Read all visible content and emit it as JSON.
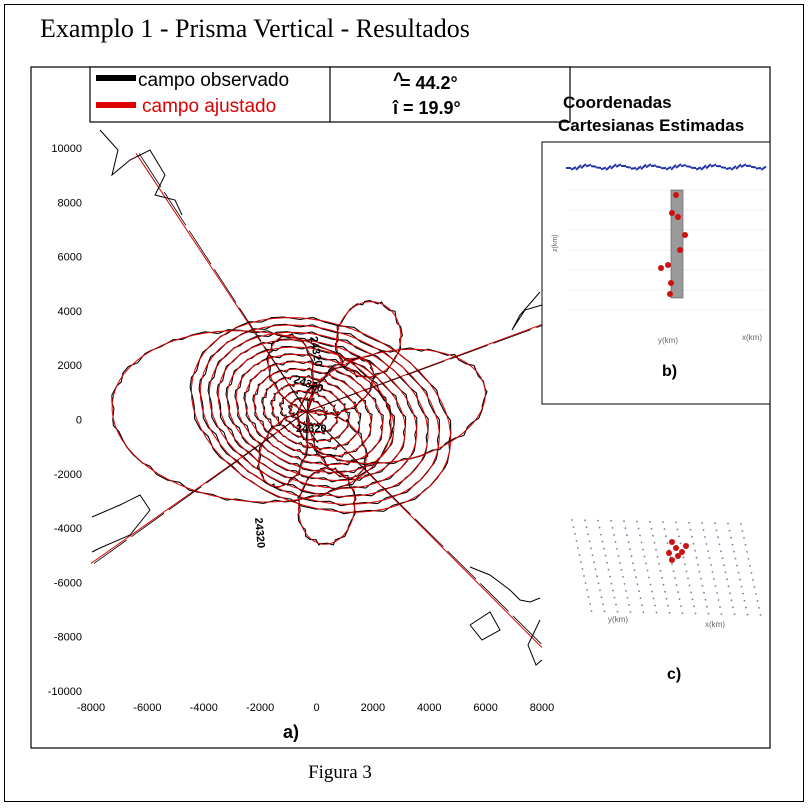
{
  "title": "Examplo 1 - Prisma Vertical - Resultados",
  "caption": "Figura 3",
  "colors": {
    "observed": "#000000",
    "fitted": "#dd0000",
    "points": "#cc1111",
    "surface": "#2233aa"
  },
  "legend": {
    "observed_label": "campo observado",
    "fitted_label": "campo ajustado",
    "declination": "= 44.2°",
    "inclination": "î = 19.9°",
    "declination_mark": "^"
  },
  "panel_b": {
    "title_line1": "Coordenadas",
    "title_line2": "Cartesianas Estimadas",
    "axis_z": "z(km)",
    "axis_y": "y(km)",
    "axis_x": "x(km)",
    "label": "b)"
  },
  "panel_c": {
    "axis_y": "y(km)",
    "axis_x": "x(km)",
    "label": "c)"
  },
  "chart_data": {
    "type": "contour",
    "series": [
      {
        "name": "campo observado",
        "color": "#000000"
      },
      {
        "name": "campo ajustado",
        "color": "#dd0000"
      }
    ],
    "xlim": [
      -8000,
      8000
    ],
    "ylim": [
      -10000,
      10000
    ],
    "x_ticks": [
      "-8000",
      "-6000",
      "-4000",
      "-2000",
      "0",
      "2000",
      "4000",
      "6000",
      "8000"
    ],
    "y_ticks": [
      "10000",
      "8000",
      "6000",
      "4000",
      "2000",
      "0",
      "-2000",
      "-4000",
      "-6000",
      "-8000",
      "-10000"
    ],
    "contour_labels": [
      "24320",
      "24320",
      "24320",
      "24320"
    ],
    "panel_label": "a)"
  }
}
